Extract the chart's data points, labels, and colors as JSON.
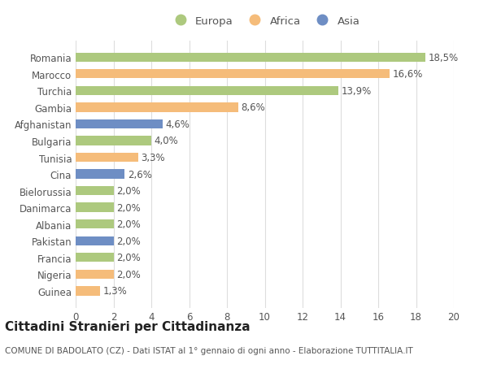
{
  "categories": [
    "Romania",
    "Marocco",
    "Turchia",
    "Gambia",
    "Afghanistan",
    "Bulgaria",
    "Tunisia",
    "Cina",
    "Bielorussia",
    "Danimarca",
    "Albania",
    "Pakistan",
    "Francia",
    "Nigeria",
    "Guinea"
  ],
  "values": [
    18.5,
    16.6,
    13.9,
    8.6,
    4.6,
    4.0,
    3.3,
    2.6,
    2.0,
    2.0,
    2.0,
    2.0,
    2.0,
    2.0,
    1.3
  ],
  "continents": [
    "Europa",
    "Africa",
    "Europa",
    "Africa",
    "Asia",
    "Europa",
    "Africa",
    "Asia",
    "Europa",
    "Europa",
    "Europa",
    "Asia",
    "Europa",
    "Africa",
    "Africa"
  ],
  "colors": {
    "Europa": "#adc97e",
    "Africa": "#f5bc7a",
    "Asia": "#6e8ec4"
  },
  "labels": [
    "18,5%",
    "16,6%",
    "13,9%",
    "8,6%",
    "4,6%",
    "4,0%",
    "3,3%",
    "2,6%",
    "2,0%",
    "2,0%",
    "2,0%",
    "2,0%",
    "2,0%",
    "2,0%",
    "1,3%"
  ],
  "xlim": [
    0,
    20
  ],
  "xticks": [
    0,
    2,
    4,
    6,
    8,
    10,
    12,
    14,
    16,
    18,
    20
  ],
  "title": "Cittadini Stranieri per Cittadinanza",
  "subtitle": "COMUNE DI BADOLATO (CZ) - Dati ISTAT al 1° gennaio di ogni anno - Elaborazione TUTTITALIA.IT",
  "background_color": "#ffffff",
  "grid_color": "#dddddd",
  "bar_height": 0.55,
  "text_color": "#555555",
  "title_fontsize": 11,
  "subtitle_fontsize": 7.5,
  "tick_fontsize": 8.5,
  "label_fontsize": 8.5,
  "legend_fontsize": 9.5
}
